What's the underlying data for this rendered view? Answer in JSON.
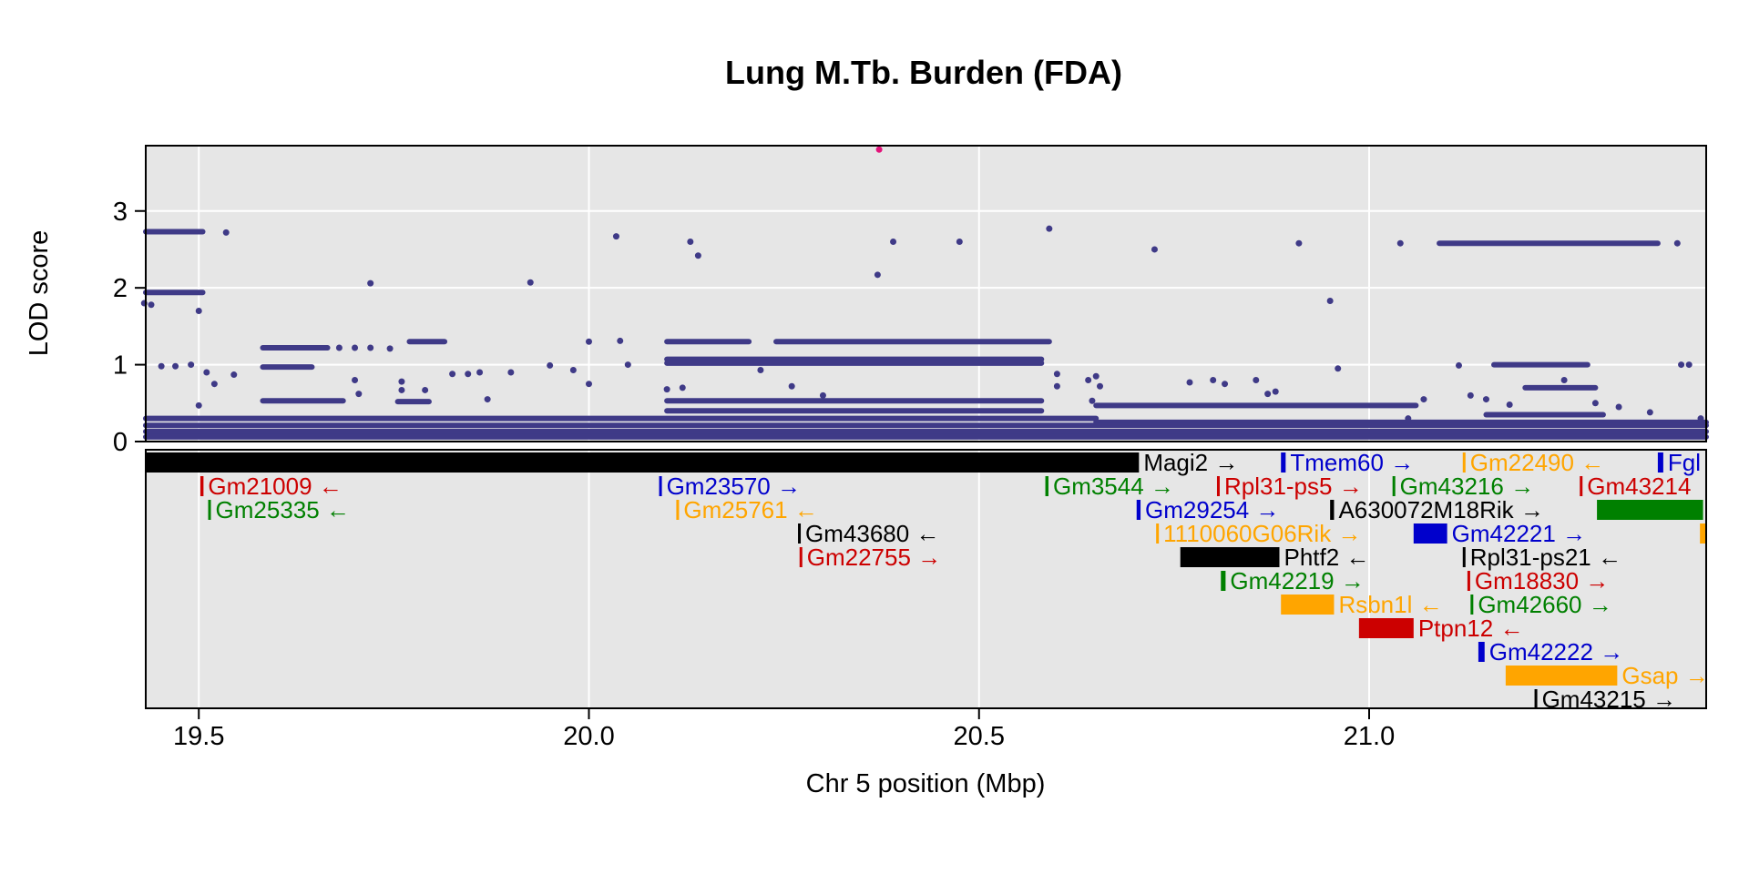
{
  "chart_data": {
    "type": "scatter",
    "title": "Lung M.Tb. Burden (FDA)",
    "xlabel": "Chr 5 position (Mbp)",
    "ylabel": "LOD score",
    "xlim": [
      19.432,
      21.432
    ],
    "ylim": [
      0,
      3.85
    ],
    "grid": true,
    "x_ticks": [
      "19.5",
      "20.0",
      "20.5",
      "21.0"
    ],
    "y_ticks": [
      "0",
      "1",
      "2",
      "3"
    ],
    "point_color": "#3f3a87",
    "highlight_color": "#e3137a",
    "highlight_point": {
      "x": 20.372,
      "y": 3.8
    },
    "horizontal_runs": [
      {
        "x0": 19.432,
        "x1": 19.505,
        "y": 2.73
      },
      {
        "x0": 19.432,
        "x1": 19.505,
        "y": 1.94
      },
      {
        "x0": 19.582,
        "x1": 19.665,
        "y": 1.22
      },
      {
        "x0": 19.582,
        "x1": 19.645,
        "y": 0.97
      },
      {
        "x0": 19.582,
        "x1": 19.685,
        "y": 0.53
      },
      {
        "x0": 19.77,
        "x1": 19.815,
        "y": 1.3
      },
      {
        "x0": 19.755,
        "x1": 19.795,
        "y": 0.52
      },
      {
        "x0": 20.1,
        "x1": 20.205,
        "y": 1.3
      },
      {
        "x0": 20.24,
        "x1": 20.59,
        "y": 1.3
      },
      {
        "x0": 20.1,
        "x1": 20.58,
        "y": 1.07
      },
      {
        "x0": 20.1,
        "x1": 20.58,
        "y": 1.02
      },
      {
        "x0": 20.1,
        "x1": 20.58,
        "y": 0.53
      },
      {
        "x0": 20.1,
        "x1": 20.58,
        "y": 0.4
      },
      {
        "x0": 19.432,
        "x1": 20.65,
        "y": 0.3
      },
      {
        "x0": 20.65,
        "x1": 21.06,
        "y": 0.47
      },
      {
        "x0": 20.65,
        "x1": 21.432,
        "y": 0.25
      },
      {
        "x0": 19.432,
        "x1": 21.432,
        "y": 0.21
      },
      {
        "x0": 19.432,
        "x1": 21.432,
        "y": 0.13
      },
      {
        "x0": 19.432,
        "x1": 21.432,
        "y": 0.06
      },
      {
        "x0": 21.09,
        "x1": 21.37,
        "y": 2.58
      },
      {
        "x0": 21.16,
        "x1": 21.28,
        "y": 1.0
      },
      {
        "x0": 21.2,
        "x1": 21.29,
        "y": 0.7
      },
      {
        "x0": 21.15,
        "x1": 21.3,
        "y": 0.35
      }
    ],
    "points": [
      [
        19.43,
        1.8
      ],
      [
        19.439,
        1.78
      ],
      [
        19.5,
        1.7
      ],
      [
        19.452,
        0.98
      ],
      [
        19.47,
        0.98
      ],
      [
        19.49,
        1.0
      ],
      [
        19.51,
        0.9
      ],
      [
        19.535,
        2.72
      ],
      [
        19.5,
        0.47
      ],
      [
        19.52,
        0.75
      ],
      [
        19.545,
        0.87
      ],
      [
        19.72,
        2.06
      ],
      [
        19.68,
        1.22
      ],
      [
        19.7,
        1.22
      ],
      [
        19.72,
        1.22
      ],
      [
        19.745,
        1.21
      ],
      [
        19.7,
        0.8
      ],
      [
        19.76,
        0.78
      ],
      [
        19.76,
        0.67
      ],
      [
        19.79,
        0.67
      ],
      [
        19.705,
        0.62
      ],
      [
        19.825,
        0.88
      ],
      [
        19.845,
        0.88
      ],
      [
        19.86,
        0.9
      ],
      [
        19.87,
        0.55
      ],
      [
        19.9,
        0.9
      ],
      [
        19.925,
        2.07
      ],
      [
        19.95,
        0.99
      ],
      [
        19.98,
        0.93
      ],
      [
        20.0,
        1.3
      ],
      [
        20.0,
        0.75
      ],
      [
        20.035,
        2.67
      ],
      [
        20.04,
        1.31
      ],
      [
        20.05,
        1.0
      ],
      [
        20.1,
        0.68
      ],
      [
        20.12,
        0.7
      ],
      [
        20.13,
        2.6
      ],
      [
        20.14,
        2.42
      ],
      [
        20.22,
        0.93
      ],
      [
        20.26,
        0.72
      ],
      [
        20.3,
        0.6
      ],
      [
        20.37,
        2.17
      ],
      [
        20.39,
        2.6
      ],
      [
        20.475,
        2.6
      ],
      [
        20.59,
        2.77
      ],
      [
        20.6,
        0.88
      ],
      [
        20.6,
        0.72
      ],
      [
        20.64,
        0.8
      ],
      [
        20.65,
        0.85
      ],
      [
        20.655,
        0.72
      ],
      [
        20.645,
        0.53
      ],
      [
        20.725,
        2.5
      ],
      [
        20.77,
        0.77
      ],
      [
        20.8,
        0.8
      ],
      [
        20.815,
        0.75
      ],
      [
        20.855,
        0.8
      ],
      [
        20.87,
        0.62
      ],
      [
        20.88,
        0.65
      ],
      [
        20.91,
        2.58
      ],
      [
        20.95,
        1.83
      ],
      [
        20.96,
        0.95
      ],
      [
        21.04,
        2.58
      ],
      [
        21.115,
        0.99
      ],
      [
        21.13,
        0.6
      ],
      [
        21.05,
        0.3
      ],
      [
        21.07,
        0.55
      ],
      [
        21.15,
        0.55
      ],
      [
        21.18,
        0.48
      ],
      [
        21.25,
        0.8
      ],
      [
        21.29,
        0.5
      ],
      [
        21.32,
        0.45
      ],
      [
        21.36,
        0.38
      ],
      [
        21.395,
        2.58
      ],
      [
        21.4,
        1.0
      ],
      [
        21.41,
        1.0
      ],
      [
        21.425,
        0.3
      ]
    ],
    "genes": [
      {
        "name": "Magi2",
        "strand": "→",
        "color": "#000000",
        "start": 19.432,
        "end": 20.705,
        "row": 0
      },
      {
        "name": "Tmem60",
        "strand": "→",
        "color": "#0000cc",
        "start": 20.887,
        "end": 20.893,
        "row": 0
      },
      {
        "name": "Gm22490",
        "strand": "←",
        "color": "#ffa500",
        "start": 21.12,
        "end": 21.122,
        "row": 0
      },
      {
        "name": "Fgl",
        "strand": "",
        "color": "#0000cc",
        "start": 21.37,
        "end": 21.377,
        "row": 0
      },
      {
        "name": "Gm21009",
        "strand": "←",
        "color": "#cc0000",
        "start": 19.502,
        "end": 19.506,
        "row": 1
      },
      {
        "name": "Gm23570",
        "strand": "→",
        "color": "#0000cc",
        "start": 20.09,
        "end": 20.092,
        "row": 1
      },
      {
        "name": "Gm3544",
        "strand": "→",
        "color": "#008000",
        "start": 20.585,
        "end": 20.589,
        "row": 1
      },
      {
        "name": "Rpl31-ps5",
        "strand": "→",
        "color": "#cc0000",
        "start": 20.805,
        "end": 20.807,
        "row": 1
      },
      {
        "name": "Gm43216",
        "strand": "→",
        "color": "#008000",
        "start": 21.03,
        "end": 21.032,
        "row": 1
      },
      {
        "name": "Gm43214",
        "strand": "",
        "color": "#cc0000",
        "start": 21.27,
        "end": 21.272,
        "row": 1
      },
      {
        "name": "Gm25335",
        "strand": "←",
        "color": "#008000",
        "start": 19.512,
        "end": 19.514,
        "row": 2
      },
      {
        "name": "Gm25761",
        "strand": "←",
        "color": "#ffa500",
        "start": 20.112,
        "end": 20.114,
        "row": 2
      },
      {
        "name": "Gm29254",
        "strand": "→",
        "color": "#0000cc",
        "start": 20.702,
        "end": 20.707,
        "row": 2
      },
      {
        "name": "A630072M18Rik",
        "strand": "→",
        "color": "#000000",
        "start": 20.95,
        "end": 20.955,
        "row": 2
      },
      {
        "name": "",
        "strand": "",
        "color": "#008000",
        "start": 21.292,
        "end": 21.428,
        "row": 2
      },
      {
        "name": "Gm43680",
        "strand": "←",
        "color": "#000000",
        "start": 20.268,
        "end": 20.27,
        "row": 3
      },
      {
        "name": "1110060G06Rik",
        "strand": "→",
        "color": "#ffa500",
        "start": 20.727,
        "end": 20.729,
        "row": 3
      },
      {
        "name": "Gm42221",
        "strand": "→",
        "color": "#0000cc",
        "start": 21.057,
        "end": 21.1,
        "row": 3
      },
      {
        "name": "",
        "strand": "",
        "color": "#ffa500",
        "start": 21.424,
        "end": 21.432,
        "row": 3
      },
      {
        "name": "Gm22755",
        "strand": "→",
        "color": "#cc0000",
        "start": 20.27,
        "end": 20.272,
        "row": 4
      },
      {
        "name": "Phtf2",
        "strand": "←",
        "color": "#000000",
        "start": 20.758,
        "end": 20.885,
        "row": 4
      },
      {
        "name": "Rpl31-ps21",
        "strand": "←",
        "color": "#000000",
        "start": 21.12,
        "end": 21.122,
        "row": 4
      },
      {
        "name": "Gm42219",
        "strand": "→",
        "color": "#008000",
        "start": 20.81,
        "end": 20.816,
        "row": 5
      },
      {
        "name": "Gm18830",
        "strand": "→",
        "color": "#cc0000",
        "start": 21.126,
        "end": 21.128,
        "row": 5
      },
      {
        "name": "Rsbn1l",
        "strand": "←",
        "color": "#ffa500",
        "start": 20.887,
        "end": 20.955,
        "row": 6
      },
      {
        "name": "Gm42660",
        "strand": "→",
        "color": "#008000",
        "start": 21.13,
        "end": 21.132,
        "row": 6
      },
      {
        "name": "Ptpn12",
        "strand": "←",
        "color": "#cc0000",
        "start": 20.987,
        "end": 21.057,
        "row": 7
      },
      {
        "name": "Gm42222",
        "strand": "→",
        "color": "#0000cc",
        "start": 21.14,
        "end": 21.148,
        "row": 8
      },
      {
        "name": "Gsap",
        "strand": "→",
        "color": "#ffa500",
        "start": 21.175,
        "end": 21.318,
        "row": 9
      },
      {
        "name": "Gm43215",
        "strand": "→",
        "color": "#000000",
        "start": 21.212,
        "end": 21.214,
        "row": 10
      }
    ]
  }
}
